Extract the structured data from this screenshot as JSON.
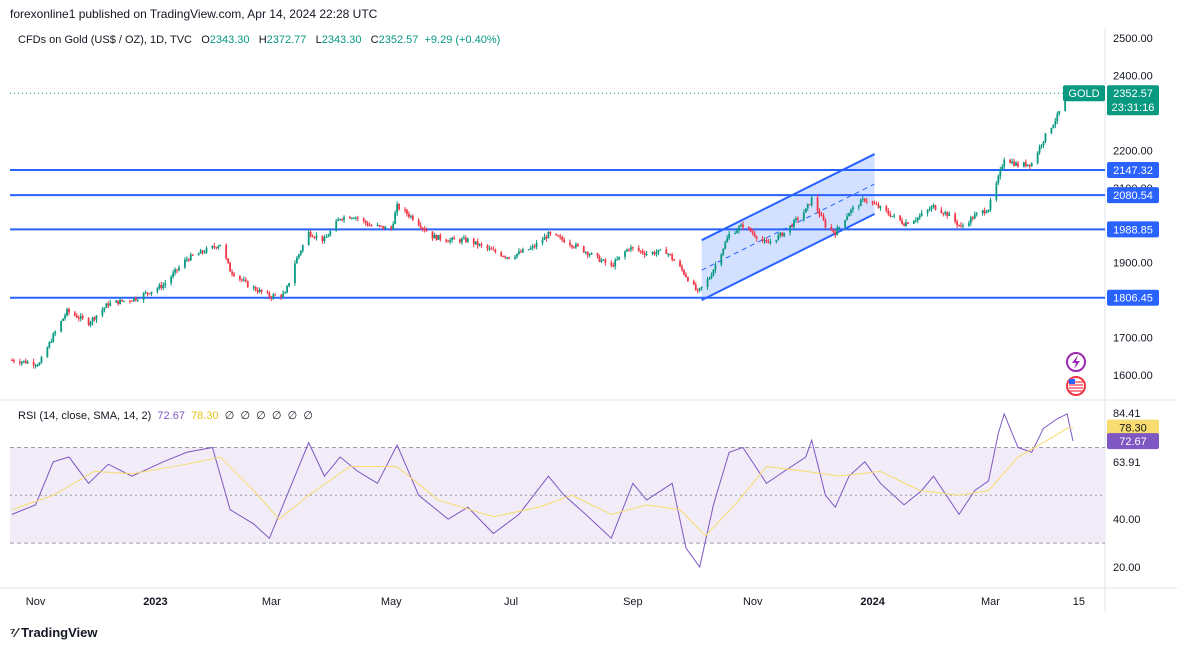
{
  "header": {
    "published": "forexonline1 published on TradingView.com, Apr 14, 2024 22:28 UTC"
  },
  "legend": {
    "symbol": "CFDs on Gold (US$ / OZ), 1D, TVC",
    "open_label": "O",
    "open": "2343.30",
    "high_label": "H",
    "high": "2372.77",
    "low_label": "L",
    "low": "2343.30",
    "close_label": "C",
    "close": "2352.57",
    "change": "+9.29 (+0.40%)"
  },
  "rsi_legend": {
    "title": "RSI (14, close, SMA, 14, 2)",
    "rsi_value": "72.67",
    "sma_value": "78.30",
    "empty_markers": [
      "∅",
      "∅",
      "∅",
      "∅",
      "∅",
      "∅"
    ]
  },
  "footer": {
    "logo_text": "TradingView"
  },
  "colors": {
    "up": "#089981",
    "down": "#f23645",
    "level": "#2962ff",
    "channel": "#2962ff",
    "rsi": "#7e57c2",
    "rsi_ma": "#f7dc6f",
    "rsi_band": "#ede7f6"
  },
  "icons": [
    "lightning-icon",
    "us-flag-icon"
  ],
  "chart_data": [
    {
      "type": "candlestick",
      "title": "CFDs on Gold (US$ / OZ), 1D, TVC",
      "ylim": [
        1560,
        2520
      ],
      "y_ticks": [
        "2500.00",
        "2400.00",
        "2200.00",
        "2100.00",
        "1900.00",
        "1700.00",
        "1600.00"
      ],
      "x_ticks": [
        "Nov",
        "2023",
        "Mar",
        "May",
        "Jul",
        "Sep",
        "Nov",
        "2024",
        "Mar",
        "15"
      ],
      "price_line": {
        "value": 2352.57,
        "label": "GOLD",
        "price": "2352.57",
        "countdown": "23:31:16"
      },
      "levels": [
        {
          "value": 2147.32,
          "label": "2147.32"
        },
        {
          "value": 2080.54,
          "label": "2080.54"
        },
        {
          "value": 1988.85,
          "label": "1988.85"
        },
        {
          "value": 1806.45,
          "label": "1806.45"
        }
      ],
      "channel": {
        "start": "2023-10-06",
        "end": "2024-01-02",
        "lower": [
          1800,
          2030
        ],
        "upper": [
          1960,
          2190
        ],
        "mid": [
          1880,
          2110
        ]
      },
      "series": [
        {
          "points": [
            [
              "2022-10-20",
              1640
            ],
            [
              "2022-11-03",
              1630
            ],
            [
              "2022-11-10",
              1705
            ],
            [
              "2022-11-17",
              1770
            ],
            [
              "2022-11-28",
              1740
            ],
            [
              "2022-12-08",
              1790
            ],
            [
              "2022-12-22",
              1805
            ],
            [
              "2023-01-05",
              1840
            ],
            [
              "2023-01-17",
              1910
            ],
            [
              "2023-01-30",
              1940
            ],
            [
              "2023-02-03",
              1950
            ],
            [
              "2023-02-08",
              1880
            ],
            [
              "2023-02-17",
              1840
            ],
            [
              "2023-02-28",
              1810
            ],
            [
              "2023-03-08",
              1815
            ],
            [
              "2023-03-13",
              1900
            ],
            [
              "2023-03-20",
              1980
            ],
            [
              "2023-03-28",
              1960
            ],
            [
              "2023-04-05",
              2020
            ],
            [
              "2023-04-12",
              2025
            ],
            [
              "2023-04-20",
              2000
            ],
            [
              "2023-05-01",
              1990
            ],
            [
              "2023-05-04",
              2050
            ],
            [
              "2023-05-12",
              2020
            ],
            [
              "2023-05-22",
              1970
            ],
            [
              "2023-05-31",
              1960
            ],
            [
              "2023-06-09",
              1960
            ],
            [
              "2023-06-22",
              1930
            ],
            [
              "2023-06-30",
              1915
            ],
            [
              "2023-07-12",
              1940
            ],
            [
              "2023-07-20",
              1975
            ],
            [
              "2023-07-28",
              1960
            ],
            [
              "2023-08-08",
              1930
            ],
            [
              "2023-08-21",
              1890
            ],
            [
              "2023-08-30",
              1940
            ],
            [
              "2023-09-08",
              1925
            ],
            [
              "2023-09-18",
              1930
            ],
            [
              "2023-09-26",
              1880
            ],
            [
              "2023-10-04",
              1820
            ],
            [
              "2023-10-10",
              1860
            ],
            [
              "2023-10-20",
              1975
            ],
            [
              "2023-10-27",
              2000
            ],
            [
              "2023-11-08",
              1950
            ],
            [
              "2023-11-17",
              1980
            ],
            [
              "2023-11-28",
              2040
            ],
            [
              "2023-12-01",
              2070
            ],
            [
              "2023-12-08",
              2000
            ],
            [
              "2023-12-13",
              1980
            ],
            [
              "2023-12-20",
              2035
            ],
            [
              "2023-12-28",
              2070
            ],
            [
              "2024-01-05",
              2045
            ],
            [
              "2024-01-17",
              2005
            ],
            [
              "2024-01-24",
              2020
            ],
            [
              "2024-02-01",
              2050
            ],
            [
              "2024-02-08",
              2030
            ],
            [
              "2024-02-15",
              1995
            ],
            [
              "2024-02-22",
              2025
            ],
            [
              "2024-02-29",
              2045
            ],
            [
              "2024-03-05",
              2125
            ],
            [
              "2024-03-08",
              2180
            ],
            [
              "2024-03-15",
              2160
            ],
            [
              "2024-03-22",
              2165
            ],
            [
              "2024-03-28",
              2230
            ],
            [
              "2024-04-04",
              2290
            ],
            [
              "2024-04-09",
              2350
            ],
            [
              "2024-04-12",
              2352.57
            ]
          ]
        }
      ]
    },
    {
      "type": "line",
      "title": "RSI (14, close, SMA, 14, 2)",
      "ylim": [
        10,
        90
      ],
      "y_ticks": [
        "84.41",
        "63.91",
        "40.00",
        "20.00"
      ],
      "band": [
        30,
        70
      ],
      "mid": 50,
      "current": {
        "rsi": "72.67",
        "sma": "78.30"
      },
      "series": [
        {
          "name": "RSI",
          "points": [
            [
              "2022-10-20",
              42
            ],
            [
              "2022-11-01",
              46
            ],
            [
              "2022-11-10",
              64
            ],
            [
              "2022-11-18",
              66
            ],
            [
              "2022-11-28",
              55
            ],
            [
              "2022-12-08",
              63
            ],
            [
              "2022-12-20",
              58
            ],
            [
              "2023-01-05",
              64
            ],
            [
              "2023-01-17",
              68
            ],
            [
              "2023-01-30",
              70
            ],
            [
              "2023-02-08",
              44
            ],
            [
              "2023-02-20",
              38
            ],
            [
              "2023-02-28",
              32
            ],
            [
              "2023-03-10",
              52
            ],
            [
              "2023-03-20",
              72
            ],
            [
              "2023-03-28",
              58
            ],
            [
              "2023-04-05",
              66
            ],
            [
              "2023-04-14",
              60
            ],
            [
              "2023-04-24",
              55
            ],
            [
              "2023-05-04",
              71
            ],
            [
              "2023-05-15",
              50
            ],
            [
              "2023-05-30",
              40
            ],
            [
              "2023-06-09",
              45
            ],
            [
              "2023-06-22",
              34
            ],
            [
              "2023-07-05",
              42
            ],
            [
              "2023-07-20",
              58
            ],
            [
              "2023-07-28",
              50
            ],
            [
              "2023-08-08",
              42
            ],
            [
              "2023-08-21",
              32
            ],
            [
              "2023-09-01",
              55
            ],
            [
              "2023-09-08",
              48
            ],
            [
              "2023-09-21",
              55
            ],
            [
              "2023-09-28",
              28
            ],
            [
              "2023-10-05",
              20
            ],
            [
              "2023-10-12",
              46
            ],
            [
              "2023-10-20",
              68
            ],
            [
              "2023-10-27",
              70
            ],
            [
              "2023-11-08",
              55
            ],
            [
              "2023-11-17",
              60
            ],
            [
              "2023-11-28",
              66
            ],
            [
              "2023-12-01",
              73
            ],
            [
              "2023-12-08",
              50
            ],
            [
              "2023-12-13",
              45
            ],
            [
              "2023-12-20",
              58
            ],
            [
              "2023-12-28",
              64
            ],
            [
              "2024-01-05",
              55
            ],
            [
              "2024-01-17",
              46
            ],
            [
              "2024-01-26",
              52
            ],
            [
              "2024-02-01",
              58
            ],
            [
              "2024-02-14",
              42
            ],
            [
              "2024-02-22",
              52
            ],
            [
              "2024-02-29",
              56
            ],
            [
              "2024-03-05",
              76
            ],
            [
              "2024-03-08",
              84
            ],
            [
              "2024-03-15",
              70
            ],
            [
              "2024-03-22",
              68
            ],
            [
              "2024-03-28",
              78
            ],
            [
              "2024-04-04",
              82
            ],
            [
              "2024-04-09",
              84
            ],
            [
              "2024-04-12",
              72.67
            ]
          ]
        },
        {
          "name": "RSI-based MA",
          "points": [
            [
              "2022-10-20",
              44
            ],
            [
              "2022-11-10",
              50
            ],
            [
              "2022-12-01",
              60
            ],
            [
              "2022-12-20",
              59
            ],
            [
              "2023-01-17",
              63
            ],
            [
              "2023-02-03",
              66
            ],
            [
              "2023-02-20",
              52
            ],
            [
              "2023-03-05",
              40
            ],
            [
              "2023-03-20",
              50
            ],
            [
              "2023-04-10",
              62
            ],
            [
              "2023-05-04",
              62
            ],
            [
              "2023-05-25",
              48
            ],
            [
              "2023-06-22",
              41
            ],
            [
              "2023-07-15",
              45
            ],
            [
              "2023-08-01",
              50
            ],
            [
              "2023-08-21",
              42
            ],
            [
              "2023-09-08",
              46
            ],
            [
              "2023-09-25",
              44
            ],
            [
              "2023-10-08",
              33
            ],
            [
              "2023-10-25",
              48
            ],
            [
              "2023-11-08",
              62
            ],
            [
              "2023-11-28",
              60
            ],
            [
              "2023-12-15",
              58
            ],
            [
              "2024-01-05",
              60
            ],
            [
              "2024-01-25",
              52
            ],
            [
              "2024-02-14",
              50
            ],
            [
              "2024-02-29",
              52
            ],
            [
              "2024-03-15",
              66
            ],
            [
              "2024-04-01",
              74
            ],
            [
              "2024-04-09",
              78
            ],
            [
              "2024-04-12",
              78.3
            ]
          ]
        }
      ]
    }
  ]
}
